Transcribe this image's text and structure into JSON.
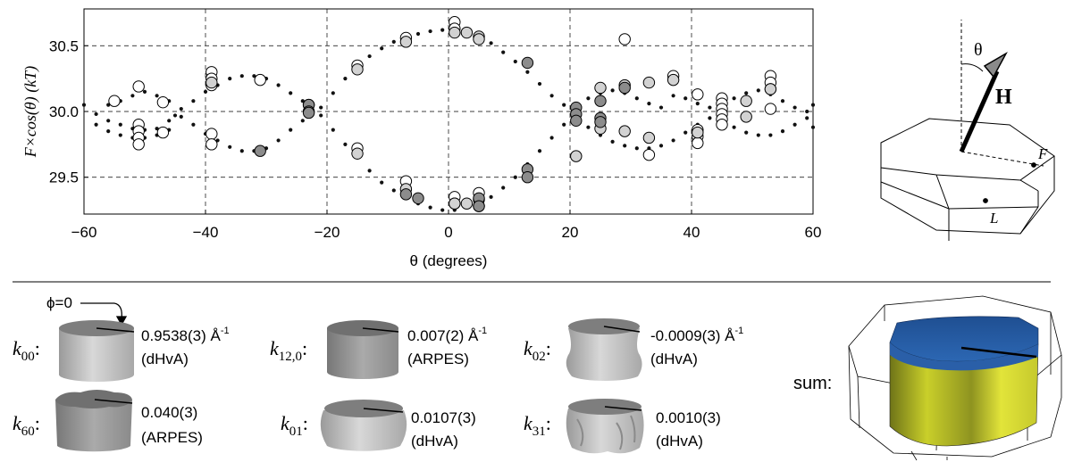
{
  "chart_data": {
    "type": "scatter",
    "xlabel": "θ (degrees)",
    "ylabel": "F×cos(θ) (kT)",
    "xlim": [
      -60,
      60
    ],
    "ylim": [
      29.22,
      30.78
    ],
    "xticks": [
      "−60",
      "−40",
      "−20",
      "0",
      "20",
      "40",
      "60"
    ],
    "xtick_values": [
      -60,
      -40,
      -20,
      0,
      20,
      40,
      60
    ],
    "yticks": [
      "29.5",
      "30.0",
      "30.5"
    ],
    "ytick_values": [
      29.5,
      30.0,
      30.5
    ],
    "grid": true,
    "series": [
      {
        "marker": "small-dot",
        "color": "#111111",
        "points": [
          [
            -60,
            30.05
          ],
          [
            -58,
            29.98
          ],
          [
            -56,
            29.93
          ],
          [
            -54,
            29.9
          ],
          [
            -52,
            29.87
          ],
          [
            -50,
            29.86
          ],
          [
            -48,
            29.87
          ],
          [
            -46,
            29.93
          ],
          [
            -45,
            29.97
          ],
          [
            -58,
            29.9
          ],
          [
            -56,
            29.85
          ],
          [
            -54,
            29.82
          ],
          [
            -52,
            29.8
          ],
          [
            -50,
            29.8
          ],
          [
            -48,
            29.82
          ],
          [
            -46,
            29.86
          ],
          [
            -56,
            30.05
          ],
          [
            -54,
            30.08
          ],
          [
            -52,
            30.12
          ],
          [
            -50,
            30.15
          ],
          [
            -48,
            30.12
          ],
          [
            -46,
            30.08
          ],
          [
            -44,
            30.02
          ],
          [
            -42,
            30.08
          ],
          [
            -40,
            30.15
          ],
          [
            -38,
            30.2
          ],
          [
            -36,
            30.25
          ],
          [
            -34,
            30.27
          ],
          [
            -32,
            30.27
          ],
          [
            -30,
            30.25
          ],
          [
            -28,
            30.2
          ],
          [
            -26,
            30.14
          ],
          [
            -24,
            30.08
          ],
          [
            -23,
            30.03
          ],
          [
            -44,
            29.96
          ],
          [
            -42,
            29.9
          ],
          [
            -40,
            29.83
          ],
          [
            -38,
            29.78
          ],
          [
            -36,
            29.73
          ],
          [
            -34,
            29.7
          ],
          [
            -32,
            29.7
          ],
          [
            -30,
            29.72
          ],
          [
            -28,
            29.78
          ],
          [
            -26,
            29.86
          ],
          [
            -24,
            29.93
          ],
          [
            -23,
            29.97
          ],
          [
            -21,
            30.03
          ],
          [
            -19,
            30.14
          ],
          [
            -17,
            30.25
          ],
          [
            -15,
            30.34
          ],
          [
            -13,
            30.42
          ],
          [
            -11,
            30.48
          ],
          [
            -9,
            30.53
          ],
          [
            -7,
            30.56
          ],
          [
            -5,
            30.59
          ],
          [
            -3,
            30.61
          ],
          [
            -1,
            30.62
          ],
          [
            1,
            30.62
          ],
          [
            3,
            30.6
          ],
          [
            5,
            30.57
          ],
          [
            7,
            30.52
          ],
          [
            9,
            30.45
          ],
          [
            11,
            30.38
          ],
          [
            13,
            30.3
          ],
          [
            15,
            30.21
          ],
          [
            17,
            30.12
          ],
          [
            19,
            30.05
          ],
          [
            -21,
            29.97
          ],
          [
            -19,
            29.86
          ],
          [
            -17,
            29.75
          ],
          [
            -15,
            29.65
          ],
          [
            -13,
            29.55
          ],
          [
            -11,
            29.46
          ],
          [
            -9,
            29.4
          ],
          [
            -7,
            29.34
          ],
          [
            -5,
            29.3
          ],
          [
            -3,
            29.27
          ],
          [
            -1,
            29.25
          ],
          [
            1,
            29.25
          ],
          [
            3,
            29.27
          ],
          [
            5,
            29.3
          ],
          [
            7,
            29.35
          ],
          [
            9,
            29.42
          ],
          [
            11,
            29.5
          ],
          [
            13,
            29.6
          ],
          [
            15,
            29.7
          ],
          [
            17,
            29.8
          ],
          [
            19,
            29.9
          ],
          [
            21,
            30.05
          ],
          [
            23,
            30.1
          ],
          [
            25,
            30.14
          ],
          [
            27,
            30.16
          ],
          [
            29,
            30.14
          ],
          [
            31,
            30.1
          ],
          [
            33,
            30.06
          ],
          [
            35,
            30.03
          ],
          [
            21,
            29.95
          ],
          [
            23,
            29.88
          ],
          [
            25,
            29.82
          ],
          [
            27,
            29.77
          ],
          [
            29,
            29.74
          ],
          [
            31,
            29.72
          ],
          [
            33,
            29.72
          ],
          [
            35,
            29.74
          ],
          [
            37,
            29.78
          ],
          [
            39,
            29.84
          ],
          [
            41,
            29.9
          ],
          [
            37,
            30.12
          ],
          [
            39,
            30.1
          ],
          [
            41,
            30.06
          ],
          [
            43,
            30.03
          ],
          [
            45,
            30.05
          ],
          [
            47,
            30.1
          ],
          [
            49,
            30.14
          ],
          [
            51,
            30.16
          ],
          [
            53,
            30.13
          ],
          [
            55,
            30.08
          ],
          [
            57,
            30.03
          ],
          [
            59,
            30.0
          ],
          [
            43,
            29.95
          ],
          [
            45,
            29.92
          ],
          [
            47,
            29.88
          ],
          [
            49,
            29.84
          ],
          [
            51,
            29.82
          ],
          [
            53,
            29.82
          ],
          [
            55,
            29.85
          ],
          [
            57,
            29.9
          ],
          [
            59,
            29.95
          ],
          [
            60,
            30.05
          ],
          [
            60,
            29.88
          ]
        ]
      },
      {
        "marker": "open-circle",
        "color": "#ffffff",
        "points": [
          [
            -55,
            30.08
          ],
          [
            -51,
            30.19
          ],
          [
            -51,
            29.9
          ],
          [
            -51,
            29.85
          ],
          [
            -51,
            29.8
          ],
          [
            -51,
            29.75
          ],
          [
            -47,
            30.07
          ],
          [
            -47,
            29.84
          ],
          [
            -39,
            30.3
          ],
          [
            -39,
            30.25
          ],
          [
            -39,
            30.2
          ],
          [
            -39,
            29.83
          ],
          [
            -39,
            29.75
          ],
          [
            -31,
            30.24
          ],
          [
            -15,
            30.35
          ],
          [
            -15,
            29.72
          ],
          [
            -7,
            30.56
          ],
          [
            -7,
            29.47
          ],
          [
            1,
            30.68
          ],
          [
            1,
            30.63
          ],
          [
            1,
            29.35
          ],
          [
            1,
            29.3
          ],
          [
            5,
            29.38
          ],
          [
            5,
            29.33
          ],
          [
            29,
            30.55
          ],
          [
            33,
            29.67
          ],
          [
            37,
            30.27
          ],
          [
            41,
            30.13
          ],
          [
            41,
            29.86
          ],
          [
            41,
            29.81
          ],
          [
            41,
            29.76
          ],
          [
            45,
            30.1
          ],
          [
            45,
            30.06
          ],
          [
            45,
            30.02
          ],
          [
            45,
            29.98
          ],
          [
            45,
            29.94
          ],
          [
            45,
            29.9
          ],
          [
            53,
            30.27
          ],
          [
            53,
            30.22
          ],
          [
            53,
            30.17
          ],
          [
            53,
            30.02
          ]
        ]
      },
      {
        "marker": "light-gray-circle",
        "color": "#d2d2d2",
        "points": [
          [
            -39,
            30.22
          ],
          [
            -23,
            30.05
          ],
          [
            -15,
            30.32
          ],
          [
            -15,
            29.68
          ],
          [
            -7,
            30.53
          ],
          [
            -7,
            29.41
          ],
          [
            1,
            30.6
          ],
          [
            1,
            29.3
          ],
          [
            3,
            30.6
          ],
          [
            3,
            29.3
          ],
          [
            5,
            30.57
          ],
          [
            5,
            30.55
          ],
          [
            5,
            29.28
          ],
          [
            21,
            29.66
          ],
          [
            25,
            30.18
          ],
          [
            25,
            29.87
          ],
          [
            29,
            30.2
          ],
          [
            29,
            29.85
          ],
          [
            33,
            30.22
          ],
          [
            33,
            29.8
          ],
          [
            37,
            30.24
          ],
          [
            41,
            29.84
          ],
          [
            49,
            30.08
          ],
          [
            49,
            29.96
          ],
          [
            53,
            30.17
          ]
        ]
      },
      {
        "marker": "dark-gray-circle",
        "color": "#8c8c8c",
        "points": [
          [
            -31,
            29.7
          ],
          [
            -23,
            30.05
          ],
          [
            -23,
            30.0
          ],
          [
            -23,
            29.99
          ],
          [
            -7,
            29.37
          ],
          [
            -5,
            29.34
          ],
          [
            5,
            29.34
          ],
          [
            5,
            29.28
          ],
          [
            13,
            30.37
          ],
          [
            13,
            29.56
          ],
          [
            13,
            29.5
          ],
          [
            21,
            30.03
          ],
          [
            21,
            29.98
          ],
          [
            21,
            29.93
          ],
          [
            25,
            30.08
          ],
          [
            25,
            29.95
          ],
          [
            25,
            29.92
          ],
          [
            29,
            30.18
          ]
        ]
      }
    ]
  },
  "inset": {
    "theta_label": "θ",
    "field_label": "H",
    "point_f": "F",
    "point_l": "L"
  },
  "components": {
    "phi_label": "ϕ=0",
    "items": [
      {
        "sym": "k",
        "sub": "00",
        "value": "0.9538(3) Å",
        "sup": "-1",
        "source": "(dHvA)"
      },
      {
        "sym": "k",
        "sub": "12,0",
        "value": "0.007(2) Å",
        "sup": "-1",
        "source": "(ARPES)"
      },
      {
        "sym": "k",
        "sub": "02",
        "value": "-0.0009(3) Å",
        "sup": "-1",
        "source": "(dHvA)"
      },
      {
        "sym": "k",
        "sub": "60",
        "value": "0.040(3)",
        "sup": "",
        "source": "(ARPES)"
      },
      {
        "sym": "k",
        "sub": "01",
        "value": "0.0107(3)",
        "sup": "",
        "source": "(dHvA)"
      },
      {
        "sym": "k",
        "sub": "31",
        "value": "0.0010(3)",
        "sup": "",
        "source": "(dHvA)"
      }
    ],
    "sum_label": "sum:",
    "colon": ":"
  }
}
